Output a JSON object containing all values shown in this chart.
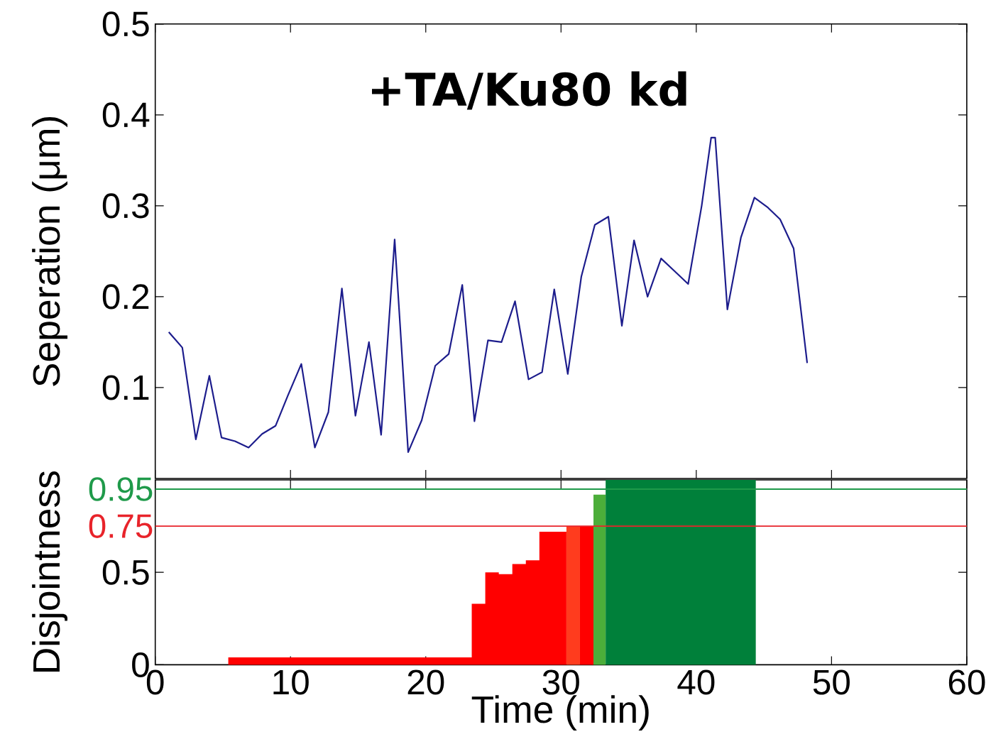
{
  "chart_data": [
    {
      "type": "line",
      "title": "+TA/Ku80 kd",
      "ylabel": "Seperation (μm)",
      "xlim": [
        0,
        60
      ],
      "xticks": [
        0,
        10,
        20,
        30,
        40,
        50,
        60
      ],
      "ylim": [
        0,
        0.5
      ],
      "yticks": [
        0.1,
        0.2,
        0.3,
        0.4,
        0.5
      ],
      "tick_labels": "y",
      "series": [
        {
          "color": "#1c1c8c",
          "x": [
            1.0,
            2.0,
            3.0,
            4.0,
            4.9,
            5.9,
            6.9,
            7.9,
            8.9,
            9.8,
            10.8,
            11.8,
            12.8,
            13.8,
            14.8,
            15.8,
            16.7,
            17.7,
            18.7,
            19.7,
            20.7,
            21.7,
            22.7,
            23.6,
            24.6,
            25.6,
            26.6,
            27.6,
            28.6,
            29.5,
            30.5,
            31.5,
            32.5,
            33.5,
            34.5,
            35.4,
            36.4,
            37.4,
            38.4,
            39.4,
            40.4,
            41.1,
            41.4,
            42.3,
            43.3,
            44.3,
            45.3,
            46.2,
            47.2,
            48.2
          ],
          "values": [
            0.161,
            0.144,
            0.043,
            0.113,
            0.045,
            0.041,
            0.034,
            0.049,
            0.058,
            0.091,
            0.126,
            0.034,
            0.073,
            0.209,
            0.069,
            0.15,
            0.048,
            0.263,
            0.029,
            0.064,
            0.124,
            0.137,
            0.213,
            0.063,
            0.152,
            0.15,
            0.195,
            0.109,
            0.117,
            0.208,
            0.115,
            0.222,
            0.279,
            0.288,
            0.168,
            0.262,
            0.2,
            0.242,
            0.228,
            0.214,
            0.3,
            0.375,
            0.375,
            0.186,
            0.265,
            0.309,
            0.298,
            0.285,
            0.253,
            0.127
          ]
        }
      ]
    },
    {
      "type": "area",
      "xlabel": "Time (min)",
      "ylabel": "Disjointness",
      "xlim": [
        0,
        60
      ],
      "xticks": [
        0,
        10,
        20,
        30,
        40,
        50,
        60
      ],
      "ylim": [
        0,
        1
      ],
      "yticks": [
        0,
        0.5
      ],
      "ref_lines": [
        {
          "axis": "y",
          "value": 0.95,
          "label": "0.95",
          "color": "#1f9a4a"
        },
        {
          "axis": "y",
          "value": 0.75,
          "label": "0.75",
          "color": "#e8232a"
        }
      ],
      "series": [
        {
          "color": "#ff0000",
          "x": [
            5.4,
            23.4,
            24.4,
            25.4,
            26.4,
            27.4,
            28.4,
            30.4
          ],
          "values": [
            0.04,
            0.33,
            0.5,
            0.49,
            0.545,
            0.565,
            0.72,
            0.72
          ]
        },
        {
          "color": "#ff3c1e",
          "x": [
            30.4,
            31.4
          ],
          "values": [
            0.75,
            0.75
          ]
        },
        {
          "color": "#ff0000",
          "x": [
            31.4,
            32.4
          ],
          "values": [
            0.75,
            0.75
          ]
        },
        {
          "color": "#4cae3a",
          "x": [
            32.4,
            33.3
          ],
          "values": [
            0.92,
            0.92
          ]
        },
        {
          "color": "#00803a",
          "x": [
            33.3,
            44.4
          ],
          "values": [
            1,
            1
          ]
        }
      ]
    }
  ]
}
